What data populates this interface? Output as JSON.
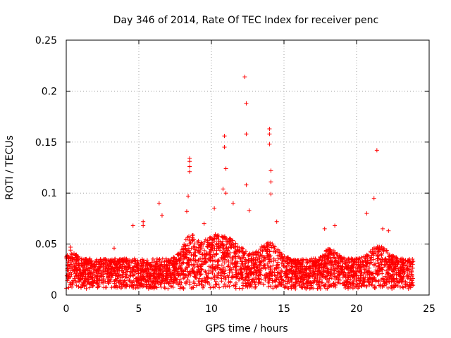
{
  "chart_data": {
    "type": "scatter",
    "title": "Day 346 of 2014, Rate Of TEC Index for receiver penc",
    "xlabel": "GPS time / hours",
    "ylabel": "ROTI / TECUs",
    "xlim": [
      0,
      25
    ],
    "ylim": [
      0,
      0.25
    ],
    "xticks": [
      0,
      5,
      10,
      15,
      20,
      25
    ],
    "yticks": [
      0,
      0.05,
      0.1,
      0.15,
      0.2,
      0.25
    ],
    "xtick_labels": [
      "0",
      "5",
      "10",
      "15",
      "20",
      "25"
    ],
    "ytick_labels": [
      "0",
      "0.05",
      "0.1",
      "0.15",
      "0.2",
      "0.25"
    ],
    "grid": true,
    "marker": "+",
    "color": "#ff0000",
    "x_range_of_data": [
      0,
      23.9
    ],
    "series": [
      {
        "name": "ROTI",
        "note": "dense band of observations ~0.005–0.05 TECU across 0–24 h with enhanced activity 8–15 h and ~21.5 h",
        "highlight_points": [
          {
            "x": 0.3,
            "y": 0.047
          },
          {
            "x": 0.3,
            "y": 0.044
          },
          {
            "x": 3.3,
            "y": 0.046
          },
          {
            "x": 4.6,
            "y": 0.068
          },
          {
            "x": 5.3,
            "y": 0.072
          },
          {
            "x": 5.3,
            "y": 0.068
          },
          {
            "x": 6.4,
            "y": 0.09
          },
          {
            "x": 6.6,
            "y": 0.078
          },
          {
            "x": 8.3,
            "y": 0.082
          },
          {
            "x": 8.4,
            "y": 0.097
          },
          {
            "x": 8.5,
            "y": 0.134
          },
          {
            "x": 8.5,
            "y": 0.131
          },
          {
            "x": 8.5,
            "y": 0.126
          },
          {
            "x": 8.5,
            "y": 0.121
          },
          {
            "x": 9.5,
            "y": 0.07
          },
          {
            "x": 10.2,
            "y": 0.085
          },
          {
            "x": 10.8,
            "y": 0.104
          },
          {
            "x": 10.9,
            "y": 0.156
          },
          {
            "x": 10.9,
            "y": 0.145
          },
          {
            "x": 11.0,
            "y": 0.124
          },
          {
            "x": 11.0,
            "y": 0.1
          },
          {
            "x": 11.5,
            "y": 0.09
          },
          {
            "x": 12.3,
            "y": 0.214
          },
          {
            "x": 12.4,
            "y": 0.188
          },
          {
            "x": 12.4,
            "y": 0.158
          },
          {
            "x": 12.4,
            "y": 0.108
          },
          {
            "x": 12.6,
            "y": 0.083
          },
          {
            "x": 14.0,
            "y": 0.163
          },
          {
            "x": 14.0,
            "y": 0.158
          },
          {
            "x": 14.0,
            "y": 0.148
          },
          {
            "x": 14.1,
            "y": 0.122
          },
          {
            "x": 14.1,
            "y": 0.111
          },
          {
            "x": 14.1,
            "y": 0.099
          },
          {
            "x": 14.5,
            "y": 0.072
          },
          {
            "x": 17.8,
            "y": 0.065
          },
          {
            "x": 18.5,
            "y": 0.068
          },
          {
            "x": 20.7,
            "y": 0.08
          },
          {
            "x": 21.2,
            "y": 0.095
          },
          {
            "x": 21.4,
            "y": 0.142
          },
          {
            "x": 21.8,
            "y": 0.065
          },
          {
            "x": 22.2,
            "y": 0.063
          }
        ]
      }
    ]
  }
}
